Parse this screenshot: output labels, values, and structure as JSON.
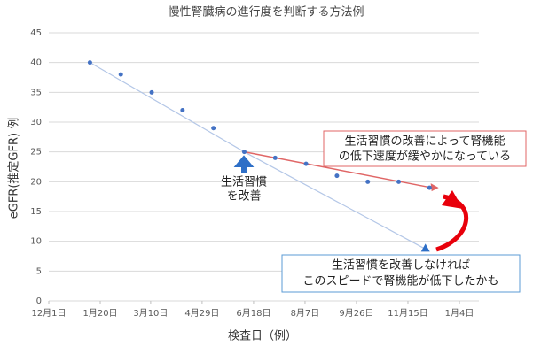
{
  "chart_data": {
    "type": "scatter",
    "title": "慢性腎臓病の進行度を判断する方法例",
    "y_label": "eGFR(推定GFR) 例",
    "x_label": "検査日（例）",
    "x": [
      40,
      70,
      100,
      130,
      160,
      190,
      220,
      250,
      280,
      310,
      340,
      370
    ],
    "values": [
      40,
      38,
      35,
      32,
      29,
      25,
      24,
      23,
      21,
      20,
      20,
      19
    ],
    "color": "#4472c4",
    "xlim": [
      0,
      399
    ],
    "xticks": [
      {
        "value": 0,
        "label": "12月1日"
      },
      {
        "value": 50,
        "label": "1月20日"
      },
      {
        "value": 99,
        "label": "3月10日"
      },
      {
        "value": 149,
        "label": "4月29日"
      },
      {
        "value": 199,
        "label": "6月18日"
      },
      {
        "value": 249,
        "label": "8月7日"
      },
      {
        "value": 299,
        "label": "9月26日"
      },
      {
        "value": 349,
        "label": "11月15日"
      },
      {
        "value": 399,
        "label": "1月4日"
      }
    ],
    "ylim": [
      0,
      45
    ],
    "yticks": [
      0,
      5,
      10,
      15,
      20,
      25,
      30,
      35,
      40,
      45
    ],
    "grid": true,
    "projection": {
      "x": [
        40,
        190,
        366
      ],
      "values": [
        40,
        25,
        8.7
      ],
      "color": "#b4c7e7"
    },
    "improved_trend": {
      "x": [
        190,
        372
      ],
      "values": [
        25,
        19
      ],
      "color": "#e06666"
    },
    "annotations": {
      "change": [
        "生活習慣",
        "を改善"
      ],
      "improved": [
        "生活習慣の改善によって腎機能",
        "の低下速度が緩やかになっている"
      ],
      "unimproved": [
        "生活習慣を改善しなければ",
        "このスピードで腎機能が低下したかも"
      ]
    }
  }
}
